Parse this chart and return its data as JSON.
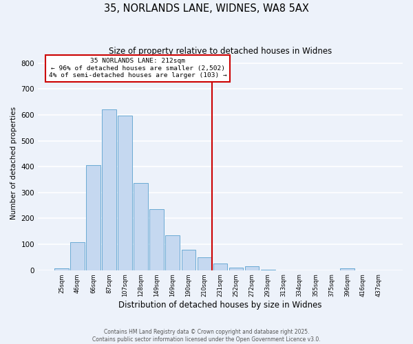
{
  "title": "35, NORLANDS LANE, WIDNES, WA8 5AX",
  "subtitle": "Size of property relative to detached houses in Widnes",
  "xlabel": "Distribution of detached houses by size in Widnes",
  "ylabel": "Number of detached properties",
  "bar_labels": [
    "25sqm",
    "46sqm",
    "66sqm",
    "87sqm",
    "107sqm",
    "128sqm",
    "149sqm",
    "169sqm",
    "190sqm",
    "210sqm",
    "231sqm",
    "252sqm",
    "272sqm",
    "293sqm",
    "313sqm",
    "334sqm",
    "355sqm",
    "375sqm",
    "396sqm",
    "416sqm",
    "437sqm"
  ],
  "bar_values": [
    7,
    108,
    405,
    620,
    597,
    337,
    237,
    136,
    79,
    51,
    25,
    11,
    16,
    3,
    0,
    0,
    0,
    0,
    8,
    0,
    0
  ],
  "bar_color": "#c5d8f0",
  "bar_edgecolor": "#6aaad4",
  "vline_x": 9.5,
  "vline_color": "#cc0000",
  "annotation_title": "35 NORLANDS LANE: 212sqm",
  "annotation_line2": "← 96% of detached houses are smaller (2,502)",
  "annotation_line3": "4% of semi-detached houses are larger (103) →",
  "annotation_box_edgecolor": "#cc0000",
  "ylim": [
    0,
    830
  ],
  "yticks": [
    0,
    100,
    200,
    300,
    400,
    500,
    600,
    700,
    800
  ],
  "footnote1": "Contains HM Land Registry data © Crown copyright and database right 2025.",
  "footnote2": "Contains public sector information licensed under the Open Government Licence v3.0.",
  "bg_color": "#edf2fa",
  "grid_color": "#ffffff"
}
